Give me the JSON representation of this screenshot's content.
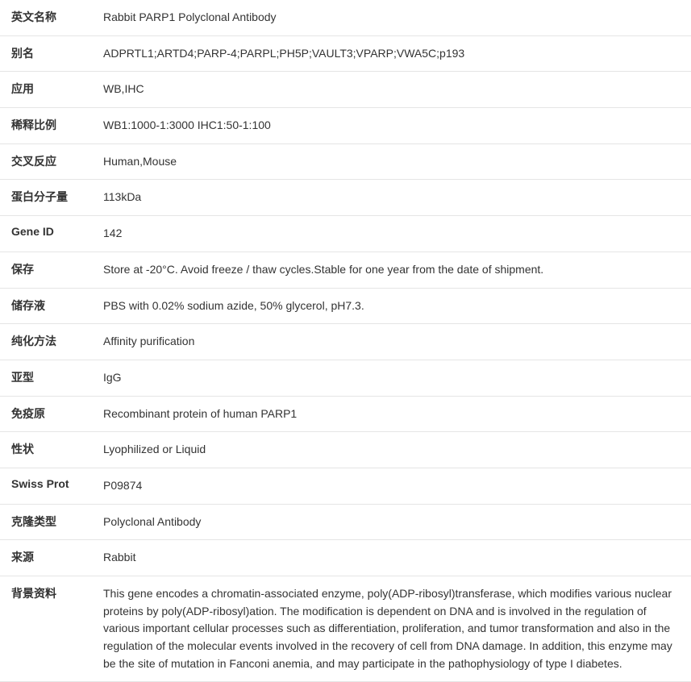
{
  "rows": [
    {
      "label": "英文名称",
      "value": "Rabbit PARP1 Polyclonal Antibody"
    },
    {
      "label": "别名",
      "value": "ADPRTL1;ARTD4;PARP-4;PARPL;PH5P;VAULT3;VPARP;VWA5C;p193"
    },
    {
      "label": "应用",
      "value": "WB,IHC"
    },
    {
      "label": "稀释比例",
      "value": "WB1:1000-1:3000 IHC1:50-1:100"
    },
    {
      "label": "交叉反应",
      "value": "Human,Mouse"
    },
    {
      "label": "蛋白分子量",
      "value": "113kDa"
    },
    {
      "label": "Gene ID",
      "value": "142"
    },
    {
      "label": "保存",
      "value": "Store at -20°C. Avoid freeze / thaw cycles.Stable for one year from the date of shipment."
    },
    {
      "label": "储存液",
      "value": "PBS with 0.02% sodium azide, 50% glycerol, pH7.3."
    },
    {
      "label": "纯化方法",
      "value": "Affinity purification"
    },
    {
      "label": "亚型",
      "value": "IgG"
    },
    {
      "label": "免疫原",
      "value": "Recombinant protein of human PARP1"
    },
    {
      "label": "性状",
      "value": "Lyophilized or Liquid"
    },
    {
      "label": "Swiss Prot",
      "value": "P09874"
    },
    {
      "label": "克隆类型",
      "value": "Polyclonal Antibody"
    },
    {
      "label": "来源",
      "value": "Rabbit"
    },
    {
      "label": "背景资料",
      "value": "This gene encodes a chromatin-associated enzyme, poly(ADP-ribosyl)transferase, which modifies various nuclear proteins by poly(ADP-ribosyl)ation. The modification is dependent on DNA and is involved in the regulation of various important cellular processes such as differentiation, proliferation, and tumor transformation and also in the regulation of the molecular events involved in the recovery of cell from DNA damage. In addition, this enzyme may be the site of mutation in Fanconi anemia, and may participate in the pathophysiology of type I diabetes."
    }
  ]
}
